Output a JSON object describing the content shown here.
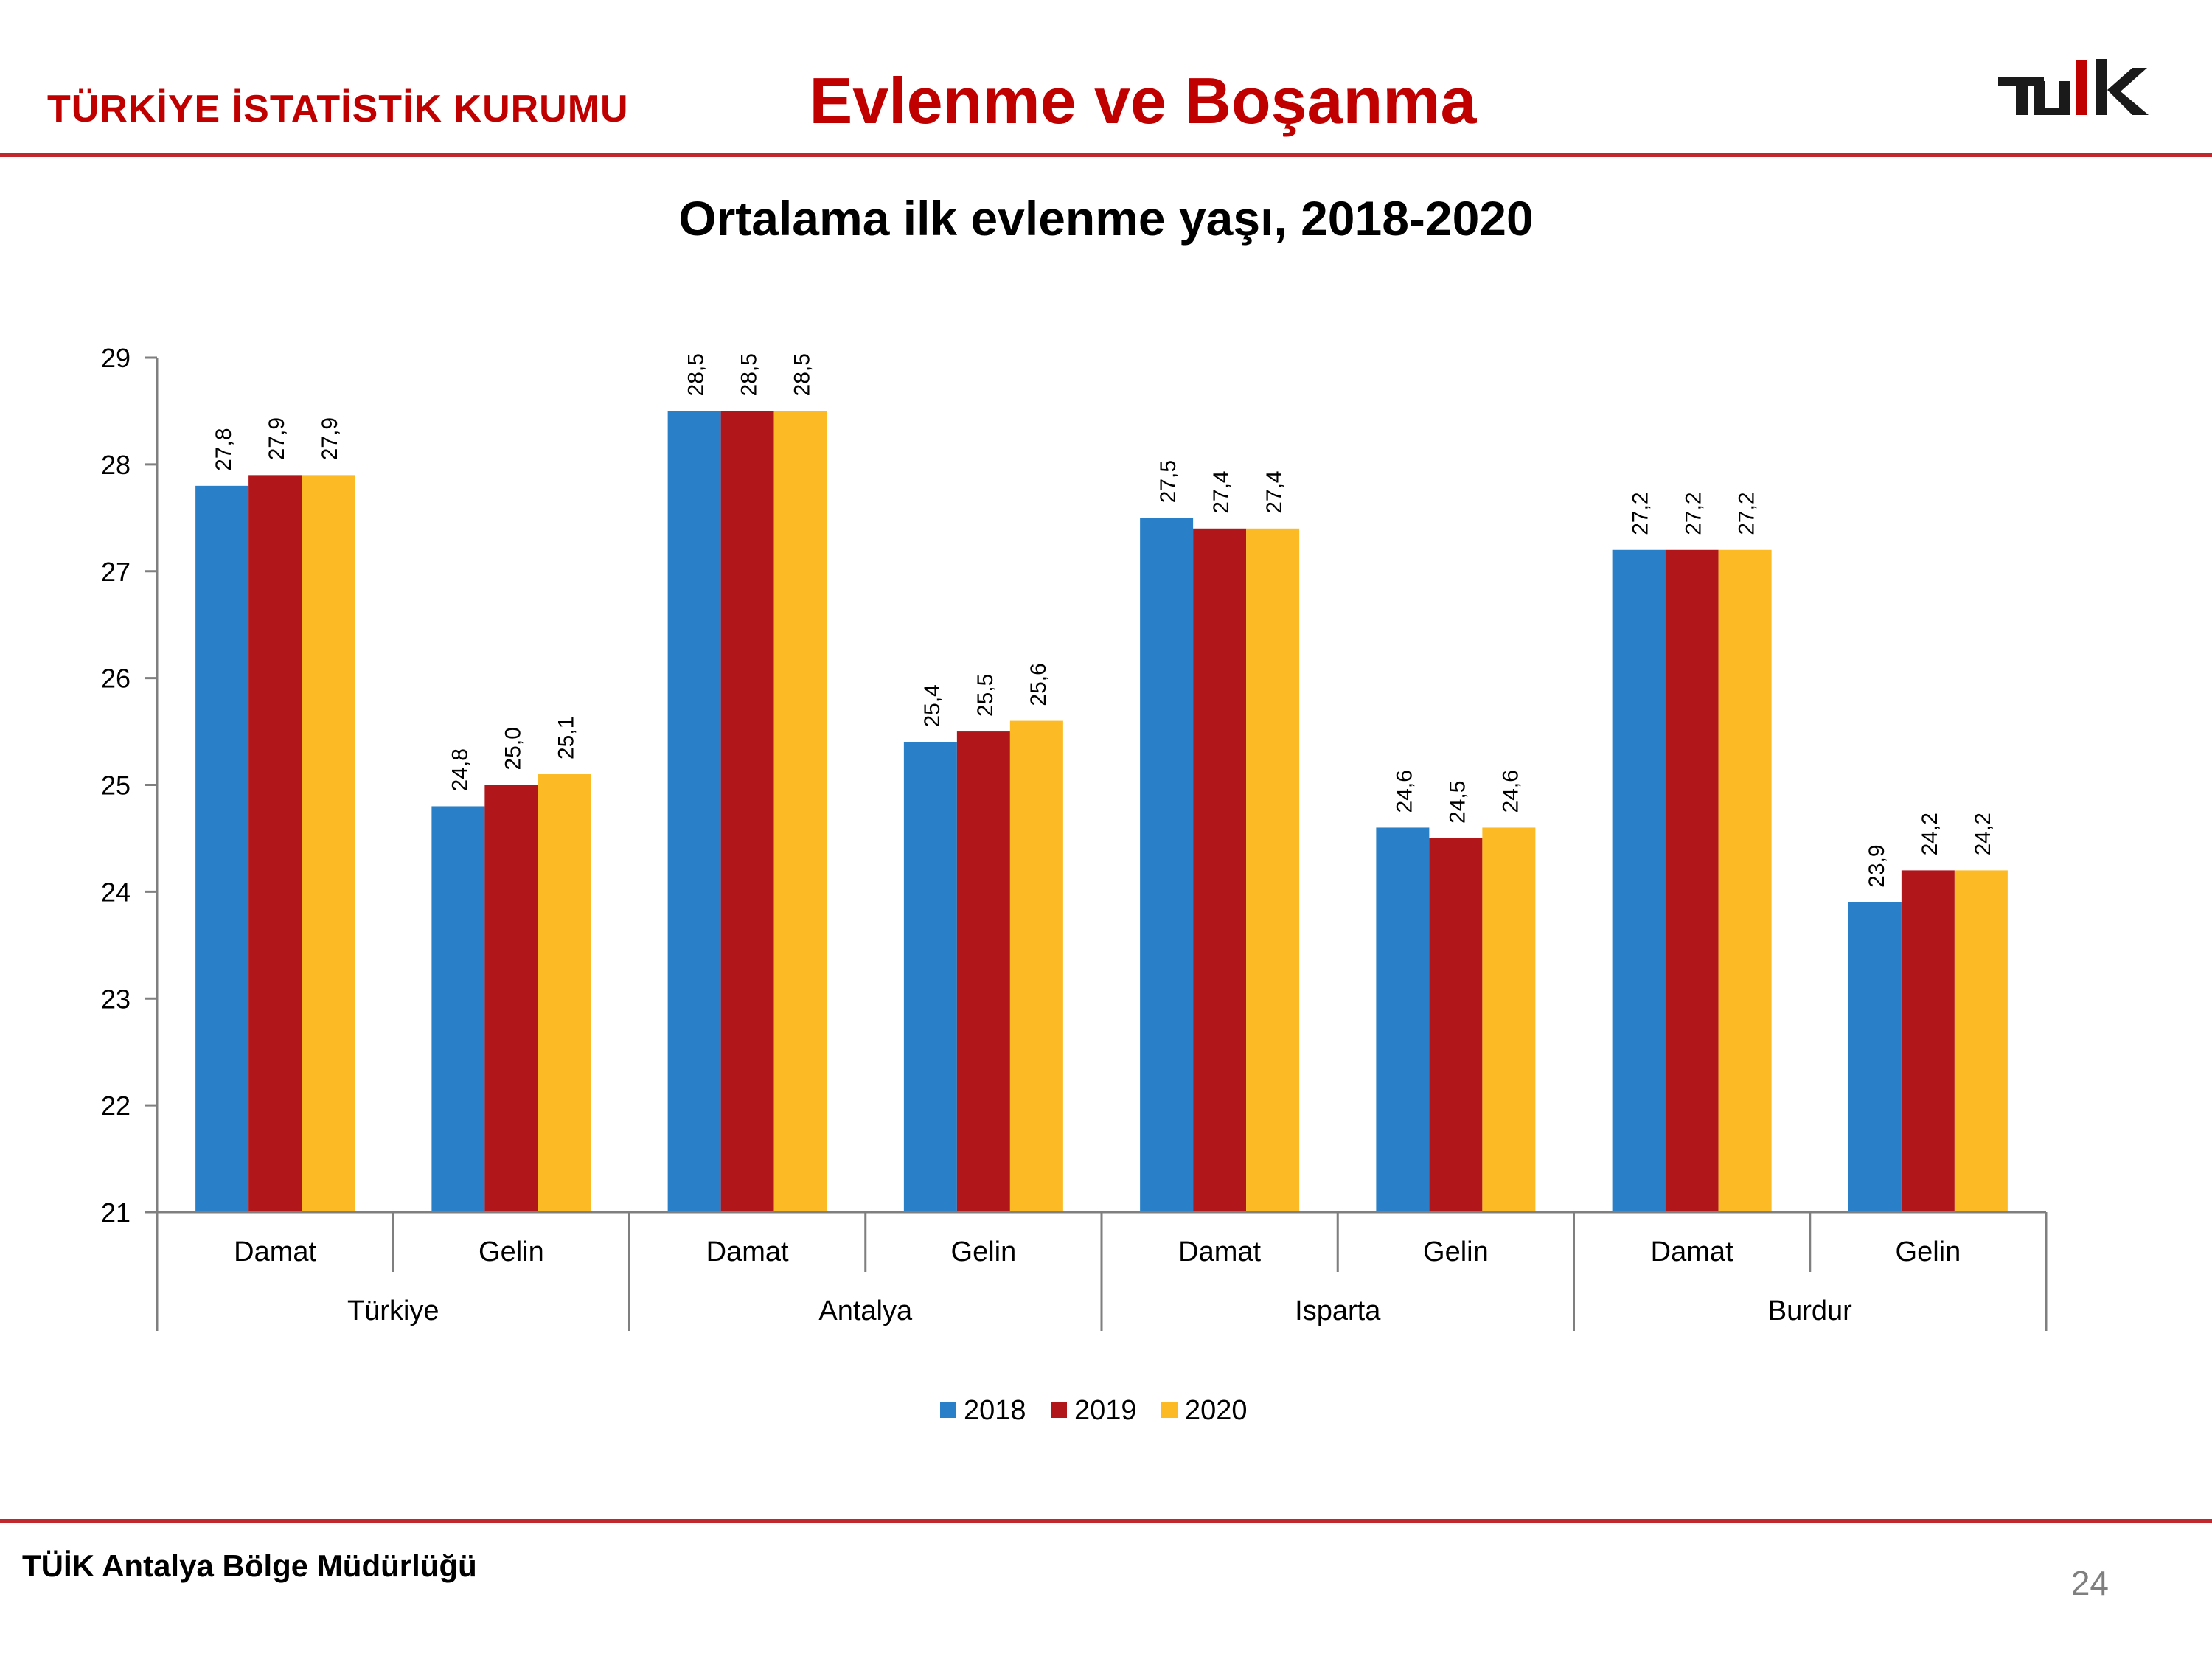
{
  "header": {
    "org_name": "TÜRKİYE İSTATİSTİK KURUMU",
    "title": "Evlenme ve Boşanma",
    "logo_text": "TÜİK"
  },
  "footer": {
    "office": "TÜİK Antalya Bölge Müdürlüğü",
    "page_number": "24"
  },
  "colors": {
    "accent": "#c00000",
    "rule": "#c0282d"
  },
  "chart_data": {
    "type": "bar",
    "title": "Ortalama ilk evlenme yaşı, 2018-2020",
    "xlabel": "",
    "ylabel": "",
    "ylim": [
      21,
      29
    ],
    "yticks": [
      "21",
      "22",
      "23",
      "24",
      "25",
      "26",
      "27",
      "28",
      "29"
    ],
    "grid": false,
    "legend_position": "bottom",
    "groups": [
      "Türkiye",
      "Antalya",
      "Isparta",
      "Burdur"
    ],
    "categories": [
      "Damat",
      "Gelin",
      "Damat",
      "Gelin",
      "Damat",
      "Gelin",
      "Damat",
      "Gelin"
    ],
    "series": [
      {
        "name": "2018",
        "color": "#2980c8",
        "values": [
          27.8,
          24.8,
          28.5,
          25.4,
          27.5,
          24.6,
          27.2,
          23.9
        ],
        "labels": [
          "27,8",
          "24,8",
          "28,5",
          "25,4",
          "27,5",
          "24,6",
          "27,2",
          "23,9"
        ]
      },
      {
        "name": "2019",
        "color": "#b0161a",
        "values": [
          27.9,
          25.0,
          28.5,
          25.5,
          27.4,
          24.5,
          27.2,
          24.2
        ],
        "labels": [
          "27,9",
          "25,0",
          "28,5",
          "25,5",
          "27,4",
          "24,5",
          "27,2",
          "24,2"
        ]
      },
      {
        "name": "2020",
        "color": "#fcbb25",
        "values": [
          27.9,
          25.1,
          28.5,
          25.6,
          27.4,
          24.6,
          27.2,
          24.2
        ],
        "labels": [
          "27,9",
          "25,1",
          "28,5",
          "25,6",
          "27,4",
          "24,6",
          "27,2",
          "24,2"
        ]
      }
    ]
  }
}
